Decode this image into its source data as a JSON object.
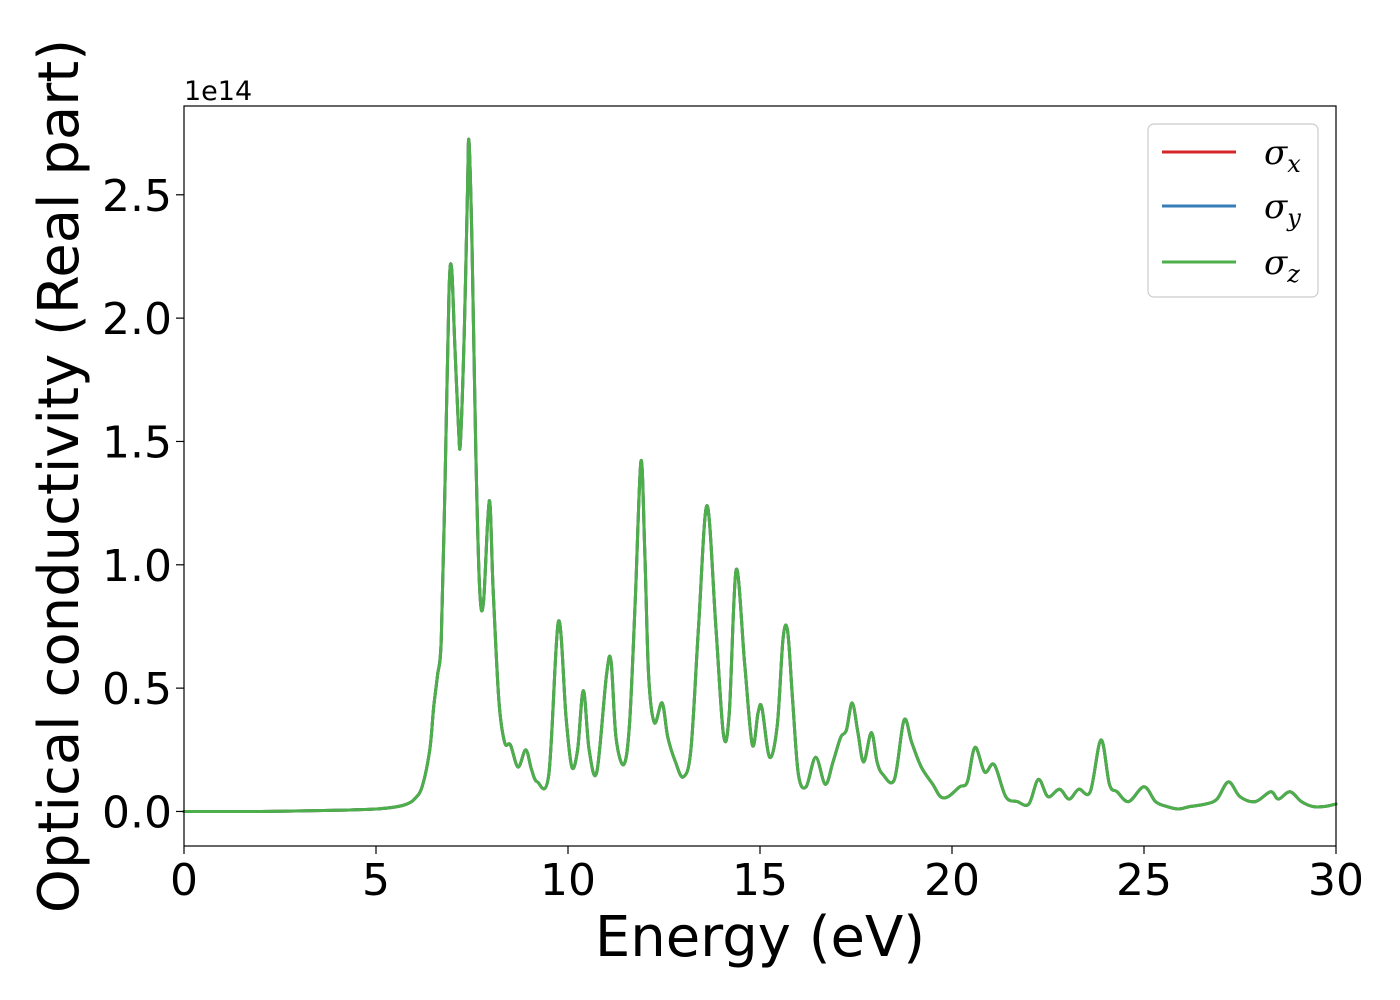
{
  "chart_data": {
    "type": "line",
    "xlabel": "Energy (eV)",
    "ylabel": "Optical conductivity (Real part)",
    "y_offset_text": "1e14",
    "y_multiplier": 100000000000000.0,
    "xlim": [
      0,
      30
    ],
    "ylim": [
      -0.14,
      2.86
    ],
    "xticks": [
      0,
      5,
      10,
      15,
      20,
      25,
      30
    ],
    "xtick_labels": [
      "0",
      "5",
      "10",
      "15",
      "20",
      "25",
      "30"
    ],
    "yticks": [
      0.0,
      0.5,
      1.0,
      1.5,
      2.0,
      2.5
    ],
    "ytick_labels": [
      "0.0",
      "0.5",
      "1.0",
      "1.5",
      "2.0",
      "2.5"
    ],
    "grid": false,
    "legend_position": "top-right",
    "series": [
      {
        "name": "σx",
        "symbol": "σ",
        "subscript": "x",
        "color": "#d62728",
        "x": [
          0,
          2,
          4,
          5,
          5.5,
          5.8,
          6.0,
          6.2,
          6.4,
          6.5,
          6.6,
          6.7,
          6.8,
          6.9,
          6.97,
          7.05,
          7.15,
          7.2,
          7.3,
          7.38,
          7.42,
          7.5,
          7.6,
          7.7,
          7.8,
          7.95,
          8.05,
          8.2,
          8.35,
          8.5,
          8.7,
          8.9,
          9.05,
          9.2,
          9.5,
          9.75,
          9.95,
          10.1,
          10.25,
          10.4,
          10.55,
          10.75,
          11.0,
          11.12,
          11.25,
          11.45,
          11.6,
          11.75,
          11.9,
          12.0,
          12.1,
          12.25,
          12.45,
          12.6,
          12.8,
          13.0,
          13.2,
          13.4,
          13.62,
          13.85,
          14.05,
          14.2,
          14.38,
          14.6,
          14.8,
          14.95,
          15.05,
          15.25,
          15.45,
          15.6,
          15.72,
          15.85,
          16.0,
          16.2,
          16.45,
          16.7,
          16.9,
          17.1,
          17.25,
          17.4,
          17.55,
          17.7,
          17.9,
          18.05,
          18.2,
          18.5,
          18.75,
          18.95,
          19.2,
          19.5,
          19.7,
          19.9,
          20.2,
          20.4,
          20.6,
          20.85,
          21.1,
          21.4,
          21.7,
          22.0,
          22.25,
          22.5,
          22.8,
          23.05,
          23.3,
          23.6,
          23.88,
          24.1,
          24.3,
          24.6,
          25.0,
          25.3,
          25.6,
          25.9,
          26.2,
          26.6,
          26.9,
          27.2,
          27.5,
          27.9,
          28.3,
          28.5,
          28.8,
          29.1,
          29.4,
          29.7,
          30
        ],
        "y": [
          0,
          0,
          0.005,
          0.01,
          0.018,
          0.03,
          0.05,
          0.1,
          0.25,
          0.42,
          0.55,
          0.7,
          1.35,
          2.1,
          2.2,
          1.9,
          1.55,
          1.5,
          1.95,
          2.5,
          2.72,
          2.3,
          1.45,
          0.9,
          0.85,
          1.26,
          0.9,
          0.45,
          0.28,
          0.27,
          0.18,
          0.25,
          0.17,
          0.12,
          0.15,
          0.77,
          0.38,
          0.18,
          0.25,
          0.49,
          0.25,
          0.16,
          0.55,
          0.61,
          0.3,
          0.19,
          0.35,
          0.85,
          1.42,
          1.05,
          0.55,
          0.36,
          0.44,
          0.3,
          0.2,
          0.14,
          0.25,
          0.75,
          1.24,
          0.75,
          0.31,
          0.4,
          0.98,
          0.6,
          0.27,
          0.4,
          0.42,
          0.22,
          0.35,
          0.7,
          0.73,
          0.45,
          0.15,
          0.1,
          0.22,
          0.11,
          0.2,
          0.3,
          0.33,
          0.44,
          0.32,
          0.2,
          0.32,
          0.2,
          0.15,
          0.13,
          0.37,
          0.28,
          0.18,
          0.11,
          0.06,
          0.06,
          0.1,
          0.12,
          0.26,
          0.16,
          0.19,
          0.06,
          0.04,
          0.03,
          0.13,
          0.06,
          0.09,
          0.05,
          0.09,
          0.08,
          0.29,
          0.11,
          0.08,
          0.04,
          0.1,
          0.04,
          0.02,
          0.01,
          0.02,
          0.03,
          0.05,
          0.12,
          0.06,
          0.04,
          0.08,
          0.05,
          0.08,
          0.04,
          0.02,
          0.02,
          0.03
        ]
      },
      {
        "name": "σy",
        "symbol": "σ",
        "subscript": "y",
        "color": "#377eb8",
        "x": [
          0,
          2,
          4,
          5,
          5.5,
          5.8,
          6.0,
          6.2,
          6.4,
          6.5,
          6.6,
          6.7,
          6.8,
          6.9,
          6.97,
          7.05,
          7.15,
          7.2,
          7.3,
          7.38,
          7.42,
          7.5,
          7.6,
          7.7,
          7.8,
          7.95,
          8.05,
          8.2,
          8.35,
          8.5,
          8.7,
          8.9,
          9.05,
          9.2,
          9.5,
          9.75,
          9.95,
          10.1,
          10.25,
          10.4,
          10.55,
          10.75,
          11.0,
          11.12,
          11.25,
          11.45,
          11.6,
          11.75,
          11.9,
          12.0,
          12.1,
          12.25,
          12.45,
          12.6,
          12.8,
          13.0,
          13.2,
          13.4,
          13.62,
          13.85,
          14.05,
          14.2,
          14.38,
          14.6,
          14.8,
          14.95,
          15.05,
          15.25,
          15.45,
          15.6,
          15.72,
          15.85,
          16.0,
          16.2,
          16.45,
          16.7,
          16.9,
          17.1,
          17.25,
          17.4,
          17.55,
          17.7,
          17.9,
          18.05,
          18.2,
          18.5,
          18.75,
          18.95,
          19.2,
          19.5,
          19.7,
          19.9,
          20.2,
          20.4,
          20.6,
          20.85,
          21.1,
          21.4,
          21.7,
          22.0,
          22.25,
          22.5,
          22.8,
          23.05,
          23.3,
          23.6,
          23.88,
          24.1,
          24.3,
          24.6,
          25.0,
          25.3,
          25.6,
          25.9,
          26.2,
          26.6,
          26.9,
          27.2,
          27.5,
          27.9,
          28.3,
          28.5,
          28.8,
          29.1,
          29.4,
          29.7,
          30
        ],
        "y": [
          0,
          0,
          0.005,
          0.01,
          0.018,
          0.03,
          0.05,
          0.1,
          0.25,
          0.42,
          0.55,
          0.7,
          1.35,
          2.1,
          2.2,
          1.9,
          1.55,
          1.5,
          1.95,
          2.5,
          2.72,
          2.3,
          1.45,
          0.9,
          0.85,
          1.26,
          0.9,
          0.45,
          0.28,
          0.27,
          0.18,
          0.25,
          0.17,
          0.12,
          0.15,
          0.77,
          0.38,
          0.18,
          0.25,
          0.49,
          0.25,
          0.16,
          0.55,
          0.61,
          0.3,
          0.19,
          0.35,
          0.85,
          1.42,
          1.05,
          0.55,
          0.36,
          0.44,
          0.3,
          0.2,
          0.14,
          0.25,
          0.75,
          1.24,
          0.75,
          0.31,
          0.4,
          0.98,
          0.6,
          0.27,
          0.4,
          0.42,
          0.22,
          0.35,
          0.7,
          0.73,
          0.45,
          0.15,
          0.1,
          0.22,
          0.11,
          0.2,
          0.3,
          0.33,
          0.44,
          0.32,
          0.2,
          0.32,
          0.2,
          0.15,
          0.13,
          0.37,
          0.28,
          0.18,
          0.11,
          0.06,
          0.06,
          0.1,
          0.12,
          0.26,
          0.16,
          0.19,
          0.06,
          0.04,
          0.03,
          0.13,
          0.06,
          0.09,
          0.05,
          0.09,
          0.08,
          0.29,
          0.11,
          0.08,
          0.04,
          0.1,
          0.04,
          0.02,
          0.01,
          0.02,
          0.03,
          0.05,
          0.12,
          0.06,
          0.04,
          0.08,
          0.05,
          0.08,
          0.04,
          0.02,
          0.02,
          0.03
        ]
      },
      {
        "name": "σz",
        "symbol": "σ",
        "subscript": "z",
        "color": "#4daf4a",
        "x": [
          0,
          2,
          4,
          5,
          5.5,
          5.8,
          6.0,
          6.2,
          6.4,
          6.5,
          6.6,
          6.7,
          6.8,
          6.9,
          6.97,
          7.05,
          7.15,
          7.2,
          7.3,
          7.38,
          7.42,
          7.5,
          7.6,
          7.7,
          7.8,
          7.95,
          8.05,
          8.2,
          8.35,
          8.5,
          8.7,
          8.9,
          9.05,
          9.2,
          9.5,
          9.75,
          9.95,
          10.1,
          10.25,
          10.4,
          10.55,
          10.75,
          11.0,
          11.12,
          11.25,
          11.45,
          11.6,
          11.75,
          11.9,
          12.0,
          12.1,
          12.25,
          12.45,
          12.6,
          12.8,
          13.0,
          13.2,
          13.4,
          13.62,
          13.85,
          14.05,
          14.2,
          14.38,
          14.6,
          14.8,
          14.95,
          15.05,
          15.25,
          15.45,
          15.6,
          15.72,
          15.85,
          16.0,
          16.2,
          16.45,
          16.7,
          16.9,
          17.1,
          17.25,
          17.4,
          17.55,
          17.7,
          17.9,
          18.05,
          18.2,
          18.5,
          18.75,
          18.95,
          19.2,
          19.5,
          19.7,
          19.9,
          20.2,
          20.4,
          20.6,
          20.85,
          21.1,
          21.4,
          21.7,
          22.0,
          22.25,
          22.5,
          22.8,
          23.05,
          23.3,
          23.6,
          23.88,
          24.1,
          24.3,
          24.6,
          25.0,
          25.3,
          25.6,
          25.9,
          26.2,
          26.6,
          26.9,
          27.2,
          27.5,
          27.9,
          28.3,
          28.5,
          28.8,
          29.1,
          29.4,
          29.7,
          30
        ],
        "y": [
          0,
          0,
          0.005,
          0.01,
          0.018,
          0.03,
          0.05,
          0.1,
          0.25,
          0.42,
          0.55,
          0.7,
          1.35,
          2.1,
          2.2,
          1.9,
          1.55,
          1.5,
          1.95,
          2.5,
          2.72,
          2.3,
          1.45,
          0.9,
          0.85,
          1.26,
          0.9,
          0.45,
          0.28,
          0.27,
          0.18,
          0.25,
          0.17,
          0.12,
          0.15,
          0.77,
          0.38,
          0.18,
          0.25,
          0.49,
          0.25,
          0.16,
          0.55,
          0.61,
          0.3,
          0.19,
          0.35,
          0.85,
          1.42,
          1.05,
          0.55,
          0.36,
          0.44,
          0.3,
          0.2,
          0.14,
          0.25,
          0.75,
          1.24,
          0.75,
          0.31,
          0.4,
          0.98,
          0.6,
          0.27,
          0.4,
          0.42,
          0.22,
          0.35,
          0.7,
          0.73,
          0.45,
          0.15,
          0.1,
          0.22,
          0.11,
          0.2,
          0.3,
          0.33,
          0.44,
          0.32,
          0.2,
          0.32,
          0.2,
          0.15,
          0.13,
          0.37,
          0.28,
          0.18,
          0.11,
          0.06,
          0.06,
          0.1,
          0.12,
          0.26,
          0.16,
          0.19,
          0.06,
          0.04,
          0.03,
          0.13,
          0.06,
          0.09,
          0.05,
          0.09,
          0.08,
          0.29,
          0.11,
          0.08,
          0.04,
          0.1,
          0.04,
          0.02,
          0.01,
          0.02,
          0.03,
          0.05,
          0.12,
          0.06,
          0.04,
          0.08,
          0.05,
          0.08,
          0.04,
          0.02,
          0.02,
          0.03
        ]
      }
    ]
  }
}
